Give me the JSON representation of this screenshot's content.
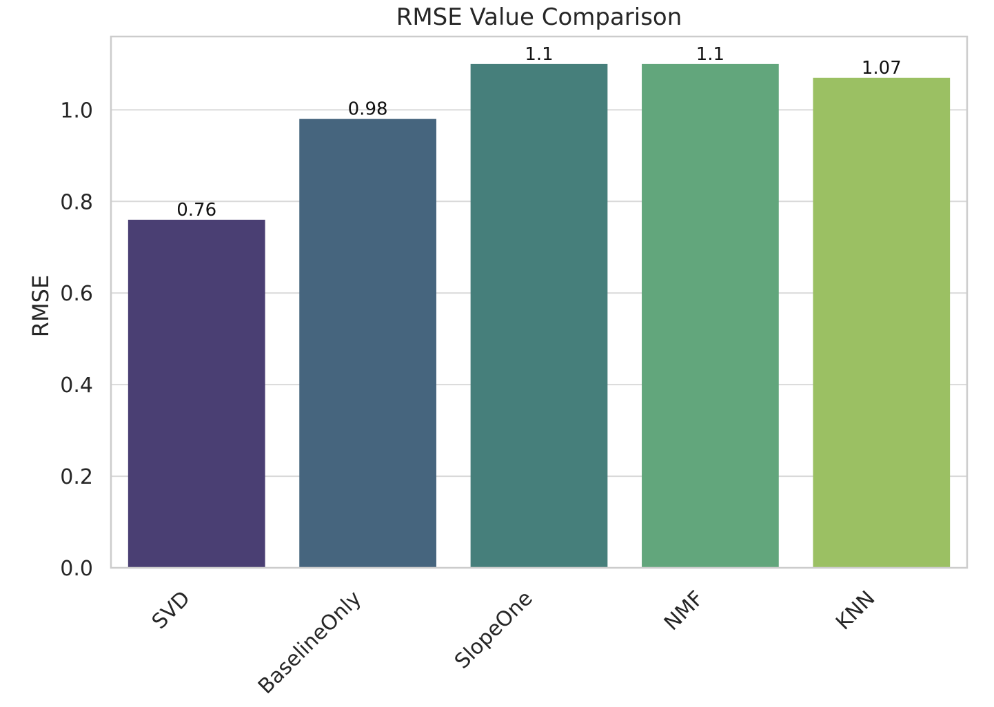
{
  "chart_data": {
    "type": "bar",
    "title": "RMSE Value Comparison",
    "xlabel": "",
    "ylabel": "RMSE",
    "categories": [
      "SVD",
      "BaselineOnly",
      "SlopeOne",
      "NMF",
      "KNN"
    ],
    "values": [
      0.76,
      0.98,
      1.1,
      1.1,
      1.07
    ],
    "data_labels": [
      "0.76",
      "0.98",
      "1.1",
      "1.1",
      "1.07"
    ],
    "colors": [
      "#4a3f73",
      "#46657e",
      "#467f7b",
      "#62a67c",
      "#9bc063"
    ],
    "ylim": [
      0,
      1.16
    ],
    "yticks": [
      0.0,
      0.2,
      0.4,
      0.6,
      0.8,
      1.0
    ],
    "ytick_labels": [
      "0.0",
      "0.2",
      "0.4",
      "0.6",
      "0.8",
      "1.0"
    ],
    "grid": true,
    "legend": "none"
  }
}
